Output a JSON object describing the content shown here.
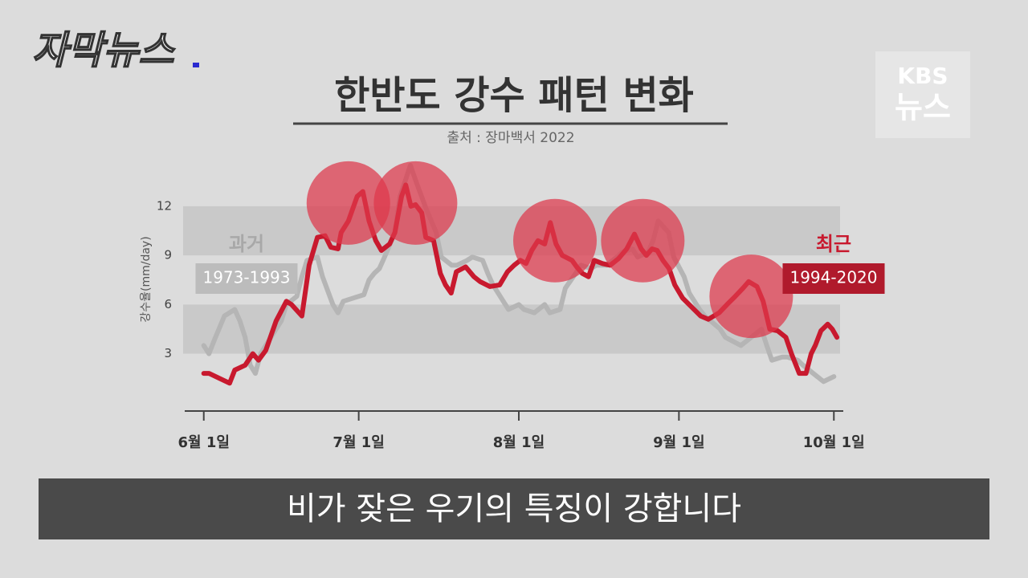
{
  "logo": "자막뉴스",
  "broadcaster": {
    "top": "KBS",
    "bottom": "뉴스"
  },
  "caption": "비가 잦은 우기의 특징이 강합니다",
  "chart_data": {
    "type": "line",
    "title": "한반도 강수 패턴 변화",
    "subtitle": "출처 : 장마백서 2022",
    "y_label": "강수율(mm/day)",
    "xlim": [
      -4,
      126
    ],
    "ylim": [
      -0.5,
      15
    ],
    "xticks": [
      {
        "value": 0,
        "label": "6월 1일"
      },
      {
        "value": 30,
        "label": "7월 1일"
      },
      {
        "value": 61,
        "label": "8월 1일"
      },
      {
        "value": 92,
        "label": "9월 1일"
      },
      {
        "value": 122,
        "label": "10월 1일"
      }
    ],
    "yticks": [
      3,
      6,
      9,
      12
    ],
    "bands": [
      [
        3,
        6
      ],
      [
        9,
        12
      ]
    ],
    "highlights": [
      [
        28,
        12.2
      ],
      [
        41,
        12.2
      ],
      [
        68,
        9.9
      ],
      [
        85,
        9.9
      ],
      [
        106,
        6.5
      ]
    ],
    "series": [
      {
        "label": "과거",
        "name": "1973-1993",
        "color": "#b5b5b5",
        "x": [
          0,
          1,
          2,
          4,
          6,
          7,
          8,
          9,
          10,
          11,
          12,
          13,
          15,
          16,
          18,
          19,
          20,
          22,
          23,
          25,
          26,
          27,
          29,
          31,
          32,
          33,
          34,
          35,
          37,
          38,
          40,
          41,
          43,
          45,
          46,
          48,
          49,
          51,
          52,
          54,
          55,
          56,
          58,
          59,
          61,
          62,
          64,
          66,
          67,
          69,
          70,
          72,
          73,
          75,
          76,
          78,
          80,
          81,
          83,
          84,
          86,
          87,
          88,
          90,
          91,
          93,
          94,
          96,
          97,
          100,
          101,
          104,
          106,
          108,
          109,
          110,
          112,
          113,
          115,
          116,
          118,
          120,
          122
        ],
        "values": [
          3.5,
          3.0,
          3.8,
          5.3,
          5.7,
          5.0,
          4.0,
          2.3,
          1.8,
          3.0,
          3.5,
          4.0,
          5.0,
          6.0,
          6.5,
          7.7,
          8.7,
          8.9,
          7.7,
          6.0,
          5.5,
          6.2,
          6.4,
          6.6,
          7.5,
          7.9,
          8.2,
          8.9,
          10.4,
          12.6,
          14.5,
          13.6,
          11.9,
          10.4,
          8.9,
          8.4,
          8.4,
          8.7,
          8.9,
          8.7,
          7.9,
          7.2,
          6.2,
          5.7,
          6.0,
          5.7,
          5.5,
          6.0,
          5.5,
          5.7,
          7.0,
          7.9,
          8.4,
          8.2,
          8.4,
          8.4,
          8.9,
          9.2,
          9.4,
          8.9,
          9.2,
          9.9,
          11.1,
          10.4,
          8.9,
          7.7,
          6.7,
          5.7,
          5.3,
          4.5,
          4.0,
          3.5,
          4.0,
          4.5,
          3.5,
          2.6,
          2.8,
          2.8,
          2.6,
          2.3,
          1.8,
          1.3,
          1.6
        ]
      },
      {
        "label": "최근",
        "name": "1994-2020",
        "color": "#c8192e",
        "x": [
          0,
          1,
          3,
          5,
          6,
          8,
          9.5,
          10.6,
          12,
          14,
          16,
          17,
          19,
          20.4,
          22,
          23.5,
          24.6,
          26,
          26.6,
          28,
          29.7,
          30.8,
          32,
          33.3,
          34.4,
          36,
          37,
          38.3,
          39.1,
          40.1,
          41,
          42.2,
          43,
          44.5,
          45.8,
          46.8,
          47.9,
          48.9,
          50.7,
          52.3,
          53.5,
          55.4,
          57.3,
          58.8,
          60.1,
          61.3,
          62.4,
          63.5,
          64.7,
          66,
          67.1,
          68.2,
          69.4,
          71.3,
          72.2,
          73.3,
          74.5,
          75.6,
          77.2,
          78.7,
          80.3,
          81.9,
          83.4,
          84.7,
          85.7,
          86.8,
          87.8,
          88.9,
          90.1,
          91.2,
          92.7,
          94.3,
          96.2,
          97.7,
          99.8,
          101.3,
          102.9,
          104.4,
          105.5,
          107.1,
          108.3,
          109.6,
          111.1,
          112.7,
          113.8,
          115.3,
          116.6,
          117.6,
          118.4,
          119.5,
          120.8,
          121.7,
          122.6
        ],
        "values": [
          1.8,
          1.8,
          1.5,
          1.2,
          2.0,
          2.3,
          3.0,
          2.6,
          3.2,
          5.0,
          6.2,
          6.0,
          5.3,
          8.4,
          10.1,
          10.2,
          9.5,
          9.4,
          10.4,
          11.1,
          12.6,
          12.9,
          11.1,
          9.9,
          9.3,
          9.7,
          10.4,
          12.6,
          13.3,
          12.0,
          12.1,
          11.6,
          10.1,
          9.9,
          7.9,
          7.2,
          6.7,
          8.0,
          8.3,
          7.7,
          7.4,
          7.1,
          7.2,
          8.0,
          8.4,
          8.7,
          8.5,
          9.3,
          9.9,
          9.7,
          11.0,
          9.7,
          9.0,
          8.7,
          8.3,
          7.9,
          7.7,
          8.7,
          8.5,
          8.4,
          8.8,
          9.4,
          10.3,
          9.4,
          9.0,
          9.4,
          9.3,
          8.7,
          8.2,
          7.2,
          6.4,
          5.9,
          5.3,
          5.1,
          5.5,
          6.0,
          6.5,
          7.0,
          7.4,
          7.1,
          6.2,
          4.5,
          4.4,
          4.0,
          3.0,
          1.8,
          1.8,
          3.0,
          3.5,
          4.4,
          4.8,
          4.5,
          4.0
        ]
      }
    ]
  }
}
